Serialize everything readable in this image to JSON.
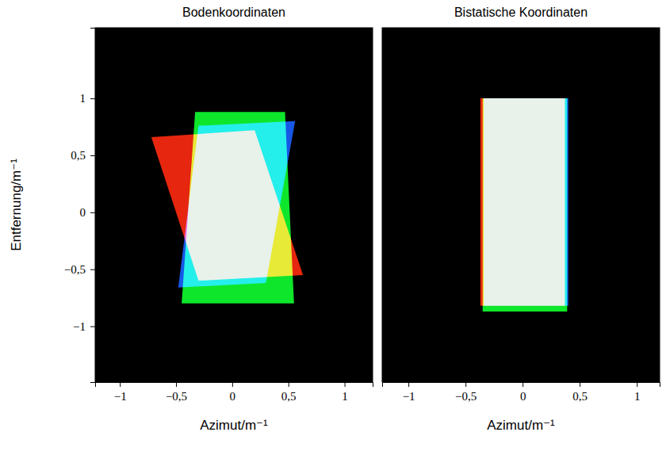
{
  "chart_data": [
    {
      "type": "polygon",
      "title": "Bodenkoordinaten",
      "x_label": "Azimut/m⁻¹",
      "y_label": "Entfernung/m⁻¹",
      "xlim": [
        -1.22,
        1.25
      ],
      "ylim": [
        -1.49,
        1.62
      ],
      "xticks": [
        {
          "value": -1,
          "label": "−1"
        },
        {
          "value": -0.5,
          "label": "−0,5"
        },
        0,
        {
          "value": 0.5,
          "label": "0,5"
        },
        1
      ],
      "yticks": [
        {
          "value": -1,
          "label": "−1"
        },
        {
          "value": -0.5,
          "label": "−0,5"
        },
        0,
        {
          "value": 0.5,
          "label": "0,5"
        },
        1
      ],
      "grid": false,
      "series": [
        {
          "color": "#ff2a10",
          "x": [
            -0.72,
            0.2,
            0.63,
            -0.3
          ],
          "y": [
            0.66,
            0.72,
            -0.55,
            -0.6
          ]
        },
        {
          "color": "#10ff30",
          "x": [
            -0.33,
            0.47,
            0.55,
            -0.45
          ],
          "y": [
            0.88,
            0.88,
            -0.8,
            -0.8
          ]
        },
        {
          "color": "#1a60ff",
          "x": [
            -0.3,
            0.56,
            0.3,
            -0.48
          ],
          "y": [
            0.76,
            0.8,
            -0.62,
            -0.66
          ]
        }
      ]
    },
    {
      "type": "polygon",
      "title": "Bistatische Koordinaten",
      "x_label": "Azimut/m⁻¹",
      "xlim": [
        -1.23,
        1.2
      ],
      "ylim": [
        -1.49,
        1.62
      ],
      "xticks": [
        {
          "value": -1,
          "label": "−1"
        },
        {
          "value": -0.5,
          "label": "−0,5"
        },
        0,
        {
          "value": 0.5,
          "label": "0,5"
        },
        1
      ],
      "tick_labels": "x",
      "grid": false,
      "series": [
        {
          "color": "#ff2a10",
          "x": [
            -0.37,
            0.37,
            0.37,
            -0.37
          ],
          "y": [
            1.0,
            1.0,
            -0.82,
            -0.82
          ]
        },
        {
          "color": "#10ff30",
          "x": [
            -0.35,
            0.39,
            0.39,
            -0.35
          ],
          "y": [
            1.0,
            1.0,
            -0.87,
            -0.87
          ]
        },
        {
          "color": "#1a60ff",
          "x": [
            -0.34,
            0.4,
            0.4,
            -0.34
          ],
          "y": [
            1.0,
            1.0,
            -0.82,
            -0.82
          ]
        }
      ]
    }
  ]
}
